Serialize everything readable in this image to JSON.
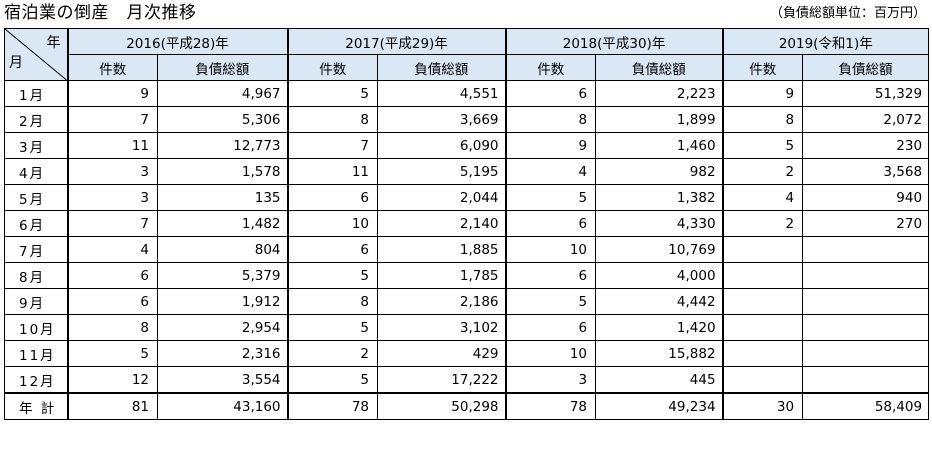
{
  "title": "宿泊業の倒産　月次推移",
  "unit_note": "（負債総額単位：百万円）",
  "corner": {
    "year": "年",
    "month": "月"
  },
  "sub_headers": {
    "count": "件数",
    "debt": "負債総額"
  },
  "years": [
    {
      "label": "2016(平成28)年"
    },
    {
      "label": "2017(平成29)年"
    },
    {
      "label": "2018(平成30)年"
    },
    {
      "label": "2019(令和1)年"
    }
  ],
  "rows": [
    {
      "month": "1月",
      "cells": [
        "9",
        "4,967",
        "5",
        "4,551",
        "6",
        "2,223",
        "9",
        "51,329"
      ]
    },
    {
      "month": "2月",
      "cells": [
        "7",
        "5,306",
        "8",
        "3,669",
        "8",
        "1,899",
        "8",
        "2,072"
      ]
    },
    {
      "month": "3月",
      "cells": [
        "11",
        "12,773",
        "7",
        "6,090",
        "9",
        "1,460",
        "5",
        "230"
      ]
    },
    {
      "month": "4月",
      "cells": [
        "3",
        "1,578",
        "11",
        "5,195",
        "4",
        "982",
        "2",
        "3,568"
      ]
    },
    {
      "month": "5月",
      "cells": [
        "3",
        "135",
        "6",
        "2,044",
        "5",
        "1,382",
        "4",
        "940"
      ]
    },
    {
      "month": "6月",
      "cells": [
        "7",
        "1,482",
        "10",
        "2,140",
        "6",
        "4,330",
        "2",
        "270"
      ]
    },
    {
      "month": "7月",
      "cells": [
        "4",
        "804",
        "6",
        "1,885",
        "10",
        "10,769",
        "",
        ""
      ]
    },
    {
      "month": "8月",
      "cells": [
        "6",
        "5,379",
        "5",
        "1,785",
        "6",
        "4,000",
        "",
        ""
      ]
    },
    {
      "month": "9月",
      "cells": [
        "6",
        "1,912",
        "8",
        "2,186",
        "5",
        "4,442",
        "",
        ""
      ]
    },
    {
      "month": "10月",
      "cells": [
        "8",
        "2,954",
        "5",
        "3,102",
        "6",
        "1,420",
        "",
        ""
      ]
    },
    {
      "month": "11月",
      "cells": [
        "5",
        "2,316",
        "2",
        "429",
        "10",
        "15,882",
        "",
        ""
      ]
    },
    {
      "month": "12月",
      "cells": [
        "12",
        "3,554",
        "5",
        "17,222",
        "3",
        "445",
        "",
        ""
      ]
    }
  ],
  "total": {
    "label": "年 計",
    "cells": [
      "81",
      "43,160",
      "78",
      "50,298",
      "78",
      "49,234",
      "30",
      "58,409"
    ]
  }
}
